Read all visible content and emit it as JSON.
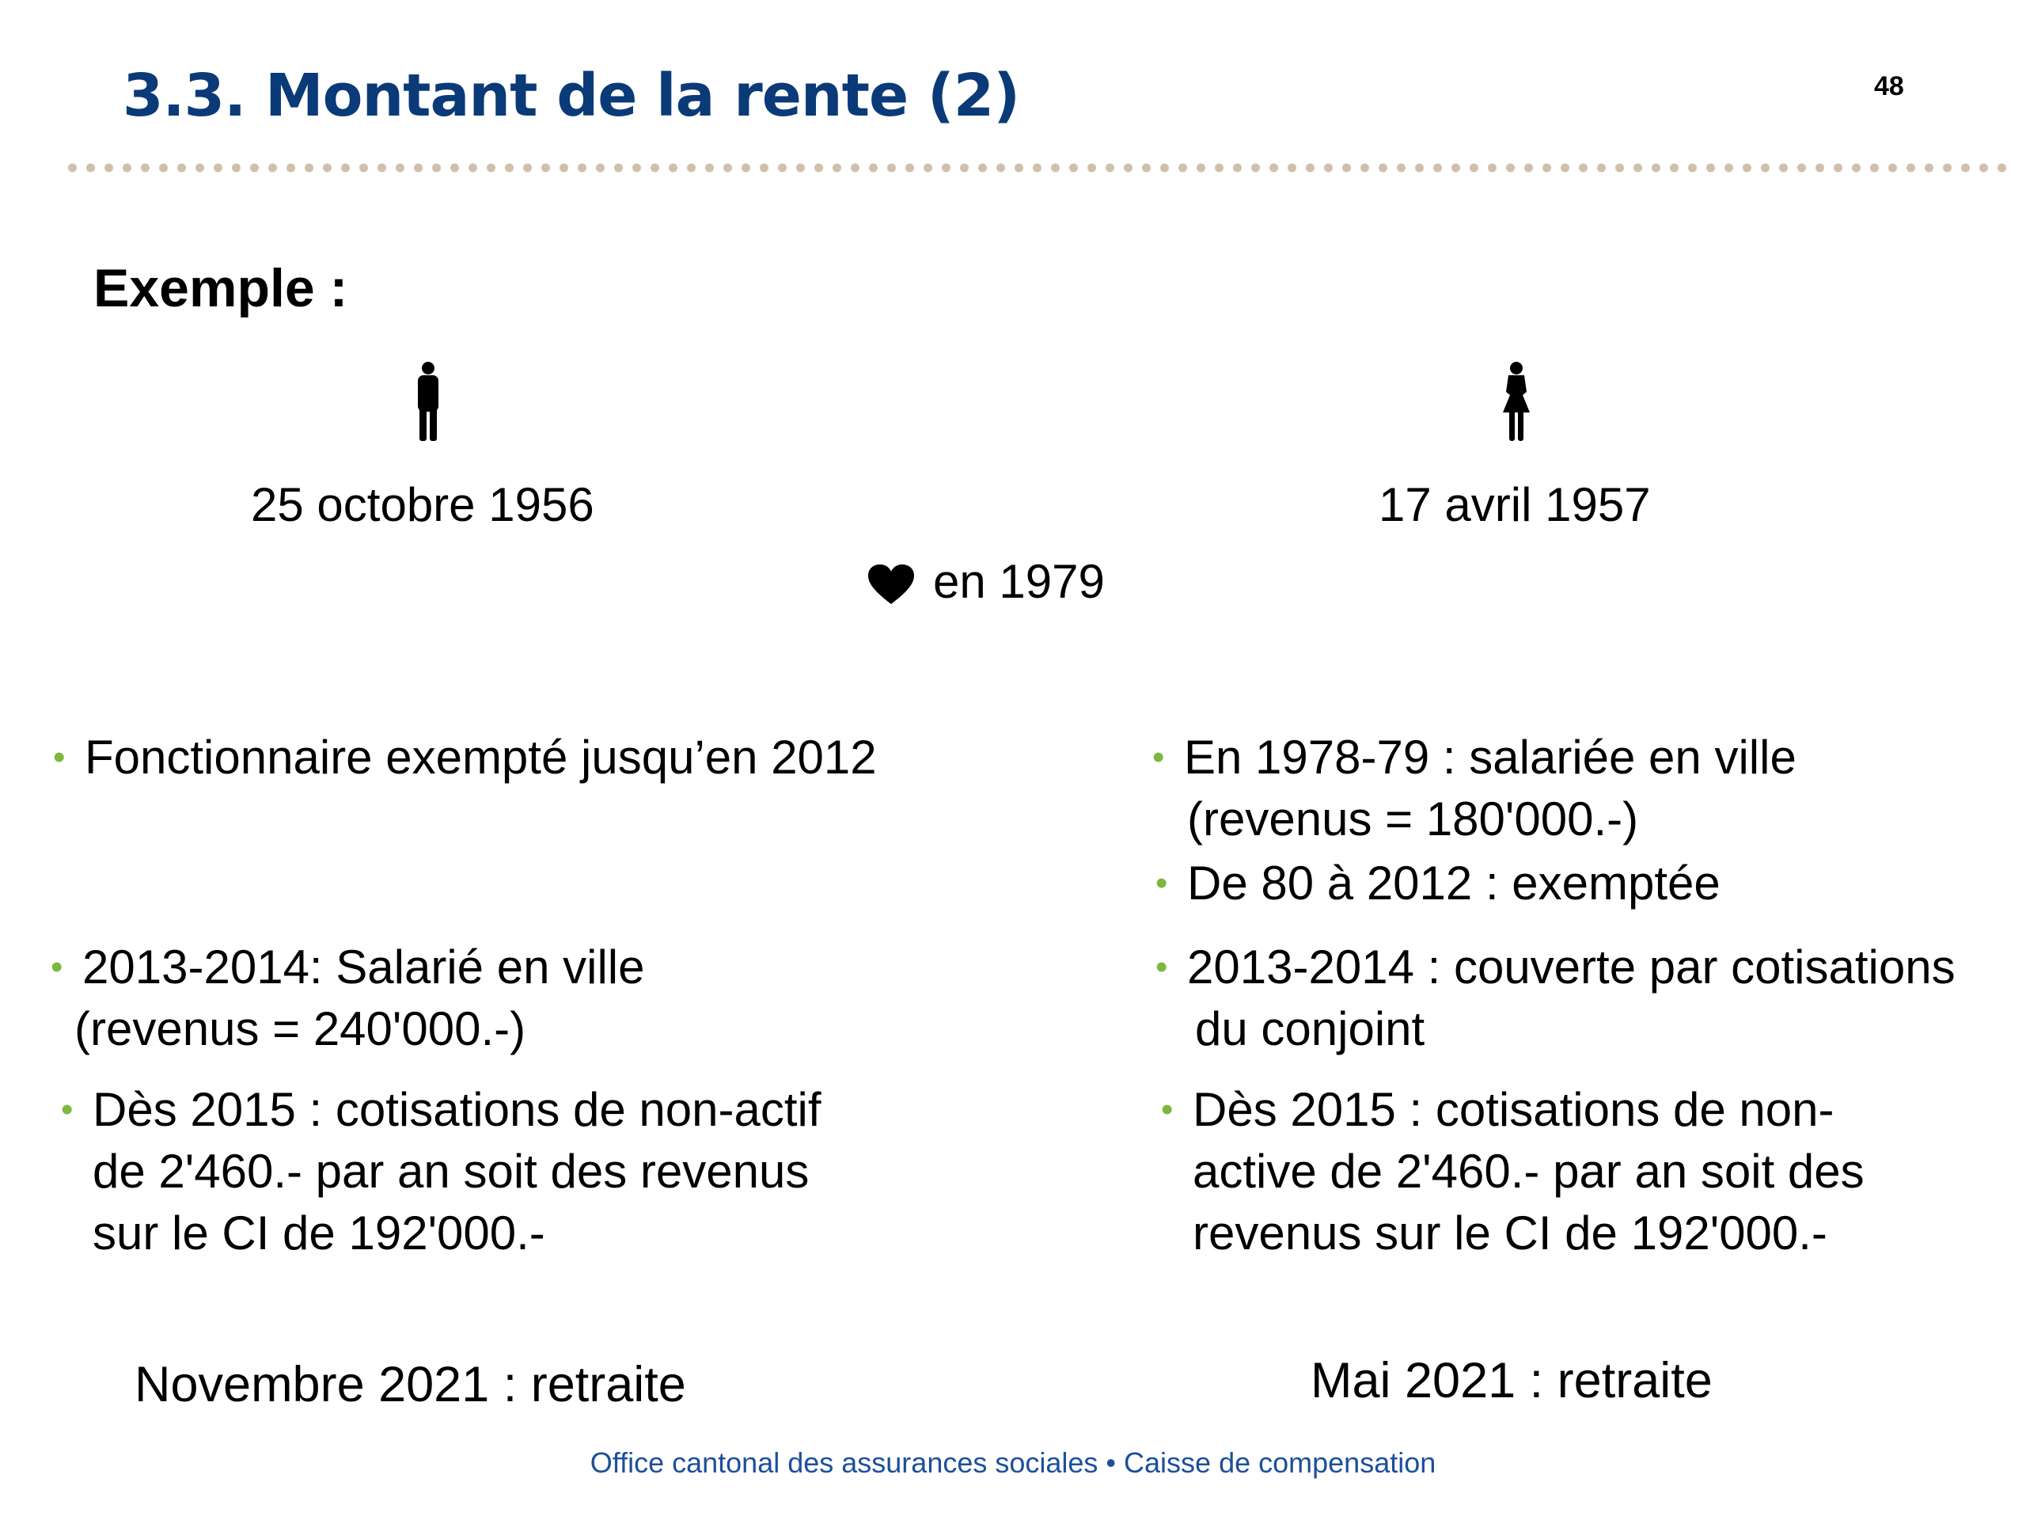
{
  "slide": {
    "title": "3.3. Montant de la rente (2)",
    "page_number": "48"
  },
  "example": {
    "label": "Exemple :",
    "man_birthdate": "25 octobre 1956",
    "woman_birthdate": "17 avril 1957",
    "marriage": "en 1979"
  },
  "left_column": {
    "bullet1": "Fonctionnaire exempté jusqu’en 2012",
    "bullet2_line1": "2013-2014: Salarié en ville",
    "bullet2_line2": "(revenus = 240'000.-)",
    "bullet3_line1": "Dès 2015  : cotisations de non-actif",
    "bullet3_line2": "de 2'460.- par an soit des revenus",
    "bullet3_line3": "sur le CI de 192'000.-",
    "retirement": "Novembre 2021 : retraite"
  },
  "right_column": {
    "bullet1_line1": "En 1978-79 : salariée en ville",
    "bullet1_line2": "(revenus = 180'000.-)",
    "bullet2": "De 80 à 2012 : exemptée",
    "bullet3_line1": "2013-2014 : couverte par cotisations",
    "bullet3_line2": "du conjoint",
    "bullet4_line1": "Dès 2015  : cotisations de non-",
    "bullet4_line2": "active de 2'460.- par an soit des",
    "bullet4_line3": "revenus sur le CI de 192'000.-",
    "retirement": "Mai 2021 : retraite"
  },
  "footer": {
    "text": "Office cantonal des assurances sociales • Caisse de compensation"
  },
  "colors": {
    "title": "#0b3a78",
    "bullet": "#7db73f",
    "footer": "#1c4f9c",
    "rule_dots": "#cdc1ac"
  },
  "icons": {
    "man": "man-silhouette-icon",
    "woman": "woman-silhouette-icon",
    "heart": "heart-icon"
  }
}
